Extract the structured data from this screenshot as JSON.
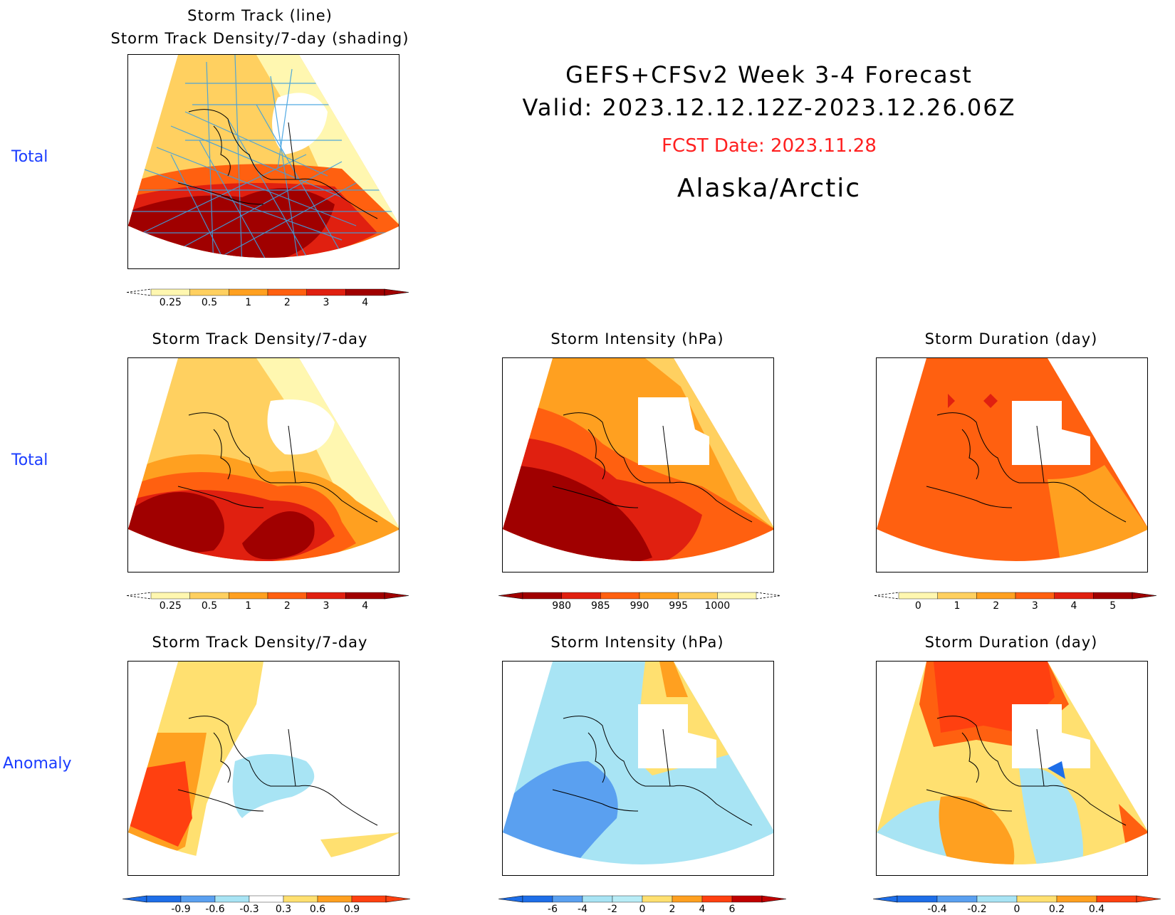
{
  "header": {
    "title_line1": "GEFS+CFSv2 Week 3-4 Forecast",
    "title_line2": "Valid: 2023.12.12.12Z-2023.12.26.06Z",
    "fcst_date": "FCST Date: 2023.11.28",
    "region": "Alaska/Arctic",
    "fcst_color": "#ff2020"
  },
  "rows": {
    "row1_label": "Total",
    "row2_label": "Total",
    "row3_label": "Anomaly"
  },
  "panels": {
    "p1_title_line1": "Storm Track (line)",
    "p1_title_line2": "Storm Track Density/7-day (shading)",
    "p2_title": "Storm Track Density/7-day",
    "p3_title": "Storm Intensity (hPa)",
    "p4_title": "Storm Duration (day)",
    "p5_title": "Storm Track Density/7-day",
    "p6_title": "Storm Intensity (hPa)",
    "p7_title": "Storm Duration (day)"
  },
  "colorbars": {
    "density_total": {
      "labels": [
        "0.25",
        "0.5",
        "1",
        "2",
        "3",
        "4"
      ],
      "colors": [
        "#fff7b0",
        "#ffd060",
        "#ffa020",
        "#ff6010",
        "#e02010",
        "#a00000"
      ]
    },
    "intensity_total": {
      "labels": [
        "980",
        "985",
        "990",
        "995",
        "1000"
      ],
      "colors": [
        "#a00000",
        "#e02010",
        "#ff6010",
        "#ffa020",
        "#ffd060",
        "#fff7b0"
      ]
    },
    "duration_total": {
      "labels": [
        "0",
        "1",
        "2",
        "3",
        "4",
        "5"
      ],
      "colors": [
        "#fff7b0",
        "#ffd060",
        "#ffa020",
        "#ff6010",
        "#e02010",
        "#a00000"
      ]
    },
    "density_anom": {
      "labels": [
        "-0.9",
        "-0.6",
        "-0.3",
        "0.3",
        "0.6",
        "0.9"
      ],
      "colors": [
        "#1e6ee8",
        "#5aa0f0",
        "#a8e4f4",
        "#ffffff",
        "#ffe070",
        "#ffa020",
        "#ff4010"
      ]
    },
    "intensity_anom": {
      "labels": [
        "-6",
        "-4",
        "-2",
        "0",
        "2",
        "4",
        "6"
      ],
      "colors": [
        "#1e6ee8",
        "#5aa0f0",
        "#a8e4f4",
        "#b8ecf6",
        "#ffe070",
        "#ffa020",
        "#ff4010",
        "#c00000"
      ]
    },
    "duration_anom": {
      "labels": [
        "-0.4",
        "-0.2",
        "0",
        "0.2",
        "0.4"
      ],
      "colors": [
        "#1e6ee8",
        "#5aa0f0",
        "#a8e4f4",
        "#ffe070",
        "#ffa020",
        "#ff4010"
      ]
    }
  }
}
